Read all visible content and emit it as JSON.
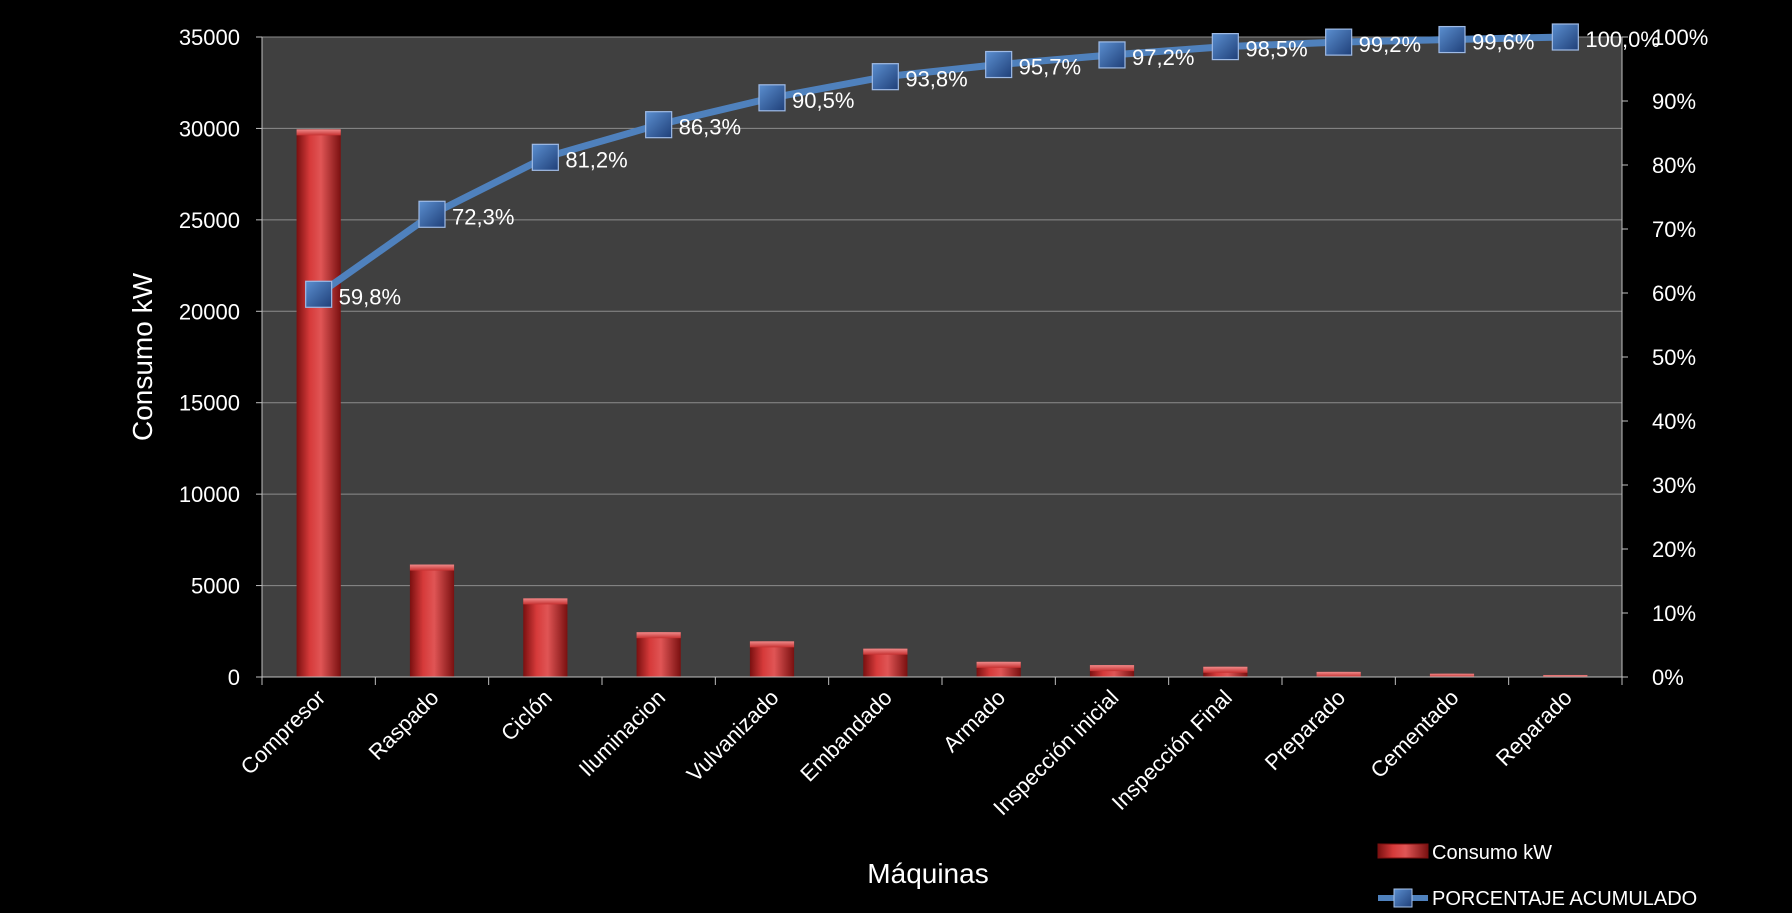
{
  "chart_data": {
    "type": "bar",
    "categories": [
      "Compresor",
      "Raspado",
      "Ciclón",
      "Iluminacion",
      "Vulvanizado",
      "Embandado",
      "Armado",
      "Inspección inicial",
      "Inspección Final",
      "Preparado",
      "Cementado",
      "Reparado"
    ],
    "series": [
      {
        "name": "Consumo kW",
        "type": "bar",
        "axis": "left",
        "color": "#c0392b",
        "values": [
          29950,
          6150,
          4300,
          2450,
          1950,
          1550,
          830,
          650,
          560,
          280,
          180,
          110
        ]
      },
      {
        "name": "PORCENTAJE ACUMULADO",
        "type": "line",
        "axis": "right",
        "color": "#4f81bd",
        "values": [
          59.8,
          72.3,
          81.2,
          86.3,
          90.5,
          93.8,
          95.7,
          97.2,
          98.5,
          99.2,
          99.6,
          100.0
        ],
        "labels": [
          "59,8%",
          "72,3%",
          "81,2%",
          "86,3%",
          "90,5%",
          "93,8%",
          "95,7%",
          "97,2%",
          "98,5%",
          "99,2%",
          "99,6%",
          "100,0%"
        ]
      }
    ],
    "xlabel": "Máquinas",
    "ylabel": "Consumo kW",
    "ylim": [
      0,
      35000
    ],
    "y2lim": [
      0,
      100
    ],
    "yticks": [
      "0",
      "5000",
      "10000",
      "15000",
      "20000",
      "25000",
      "30000",
      "35000"
    ],
    "y2ticks": [
      "0%",
      "10%",
      "20%",
      "30%",
      "40%",
      "50%",
      "60%",
      "70%",
      "80%",
      "90%",
      "100%"
    ],
    "grid": true,
    "legend_position": "bottom-right",
    "plot_background": "#404040"
  }
}
